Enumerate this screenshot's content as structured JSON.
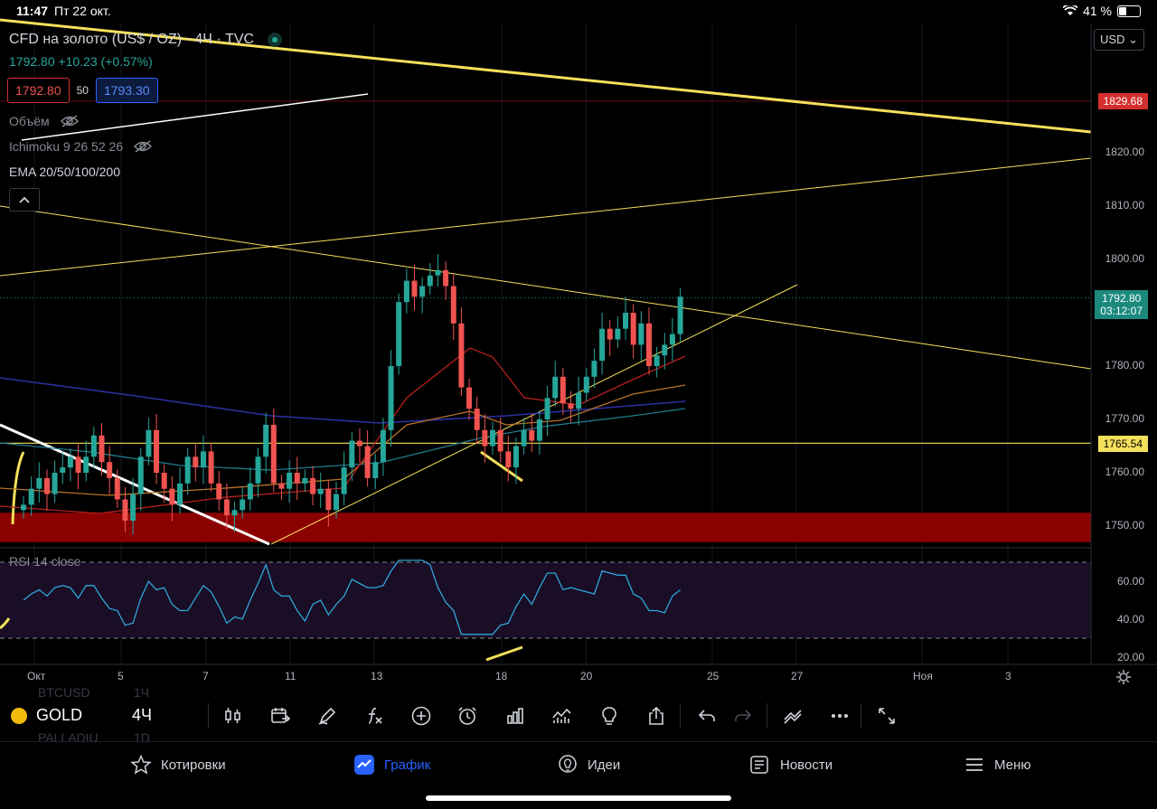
{
  "status": {
    "time": "11:47",
    "date": "Пт 22 окт.",
    "battery": "41 %"
  },
  "legend": {
    "title": "CFD на золото (US$ / OZ) · 4Ч · TVC",
    "price_line": "1792.80 +10.23 (+0.57%)",
    "bid": "1792.80",
    "spread": "50",
    "ask": "1793.30",
    "indicators": [
      {
        "label": "Объём"
      },
      {
        "label": "Ichimoku 9 26 52 26"
      },
      {
        "label": "EMA 20/50/100/200"
      }
    ]
  },
  "currency_select": "USD",
  "price_tags": {
    "red_line": "1829.68",
    "last_price": "1792.80",
    "countdown": "03:12:07",
    "support": "1765.54"
  },
  "price_axis": [
    "1820.00",
    "1810.00",
    "1800.00",
    "1780.00",
    "1770.00",
    "1760.00",
    "1750.00"
  ],
  "rsi": {
    "title": "RSI 14 close",
    "axis": [
      "60.00",
      "40.00",
      "20.00"
    ]
  },
  "time_axis": [
    "Окт",
    "5",
    "7",
    "11",
    "13",
    "18",
    "20",
    "25",
    "27",
    "Ноя",
    "3"
  ],
  "toolbar": {
    "symbol": "GOLD",
    "interval": "4Ч",
    "ghost_top": "BTCUSD",
    "ghost_top_int": "1Ч",
    "ghost_bottom": "PALLADIU",
    "ghost_bottom_int": "1D",
    "icons": [
      "candles-icon",
      "compare-calendar-icon",
      "pen-draw-icon",
      "fx-indicator-icon",
      "plus-circle-icon",
      "alarm-clock-icon",
      "bar-chart-icon",
      "multi-chart-icon",
      "lightbulb-icon",
      "share-icon",
      "undo-icon",
      "redo-icon",
      "strategy-icon",
      "more-icon",
      "fullscreen-icon"
    ]
  },
  "nav": {
    "quotes": "Котировки",
    "chart": "График",
    "ideas": "Идеи",
    "news": "Новости",
    "menu": "Меню"
  },
  "colors": {
    "up": "#26a69a",
    "down": "#ef5350",
    "trendline": "#f5e05a",
    "support_zone": "#8b0000",
    "rsi_line": "#2ea7d8",
    "accent": "#2962ff"
  },
  "chart_data": {
    "type": "candlestick",
    "ylim": [
      1745,
      1838
    ],
    "series": [
      {
        "name": "",
        "values": [
          1754,
          1757,
          1759,
          1756,
          1760,
          1761,
          1763,
          1760,
          1763,
          1767,
          1762,
          1759,
          1755,
          1751,
          1756,
          1763,
          1768,
          1760,
          1757,
          1754,
          1758,
          1763,
          1761,
          1764,
          1758,
          1755,
          1752,
          1753,
          1755,
          1758,
          1763,
          1769,
          1758,
          1757,
          1760,
          1758,
          1759,
          1756,
          1757,
          1753,
          1756,
          1761,
          1766,
          1765,
          1759,
          1762,
          1768,
          1780,
          1792,
          1796,
          1793,
          1795,
          1797,
          1798,
          1795,
          1788,
          1776,
          1772,
          1768,
          1765,
          1768,
          1764,
          1761,
          1765,
          1768,
          1766,
          1770,
          1774,
          1778,
          1773,
          1772,
          1775,
          1778,
          1781,
          1787,
          1785,
          1787,
          1790,
          1784,
          1788,
          1780,
          1782,
          1784,
          1786,
          1793
        ]
      }
    ]
  }
}
